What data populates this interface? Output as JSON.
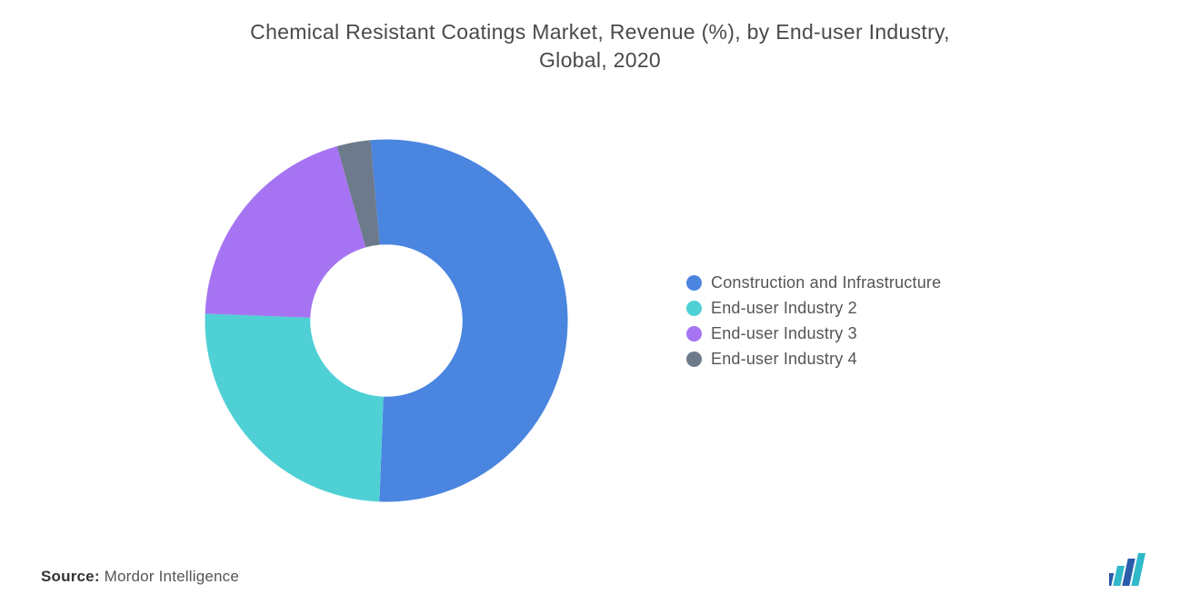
{
  "title_line1": "Chemical Resistant Coatings Market, Revenue (%), by End-user Industry,",
  "title_line2": "Global, 2020",
  "chart": {
    "type": "donut",
    "inner_radius_ratio": 0.42,
    "background_color": "#ffffff",
    "slices": [
      {
        "label": "Construction and Infrastructure",
        "value": 52,
        "color": "#4a85e0"
      },
      {
        "label": "End-user Industry 2",
        "value": 25,
        "color": "#4fd0d4"
      },
      {
        "label": "End-user Industry 3",
        "value": 20,
        "color": "#a674f2"
      },
      {
        "label": "End-user Industry 4",
        "value": 3,
        "color": "#6c7a8c"
      }
    ]
  },
  "legend_items": [
    {
      "label": "Construction and Infrastructure",
      "color": "#4a85e0"
    },
    {
      "label": "End-user Industry 2",
      "color": "#4fd0d4"
    },
    {
      "label": "End-user Industry 3",
      "color": "#a674f2"
    },
    {
      "label": "End-user Industry 4",
      "color": "#6c7a8c"
    }
  ],
  "source_label": "Source:",
  "source_text": "Mordor Intelligence",
  "logo_colors": {
    "bar": "#2a5caa",
    "fill": "#2fb9c9"
  }
}
